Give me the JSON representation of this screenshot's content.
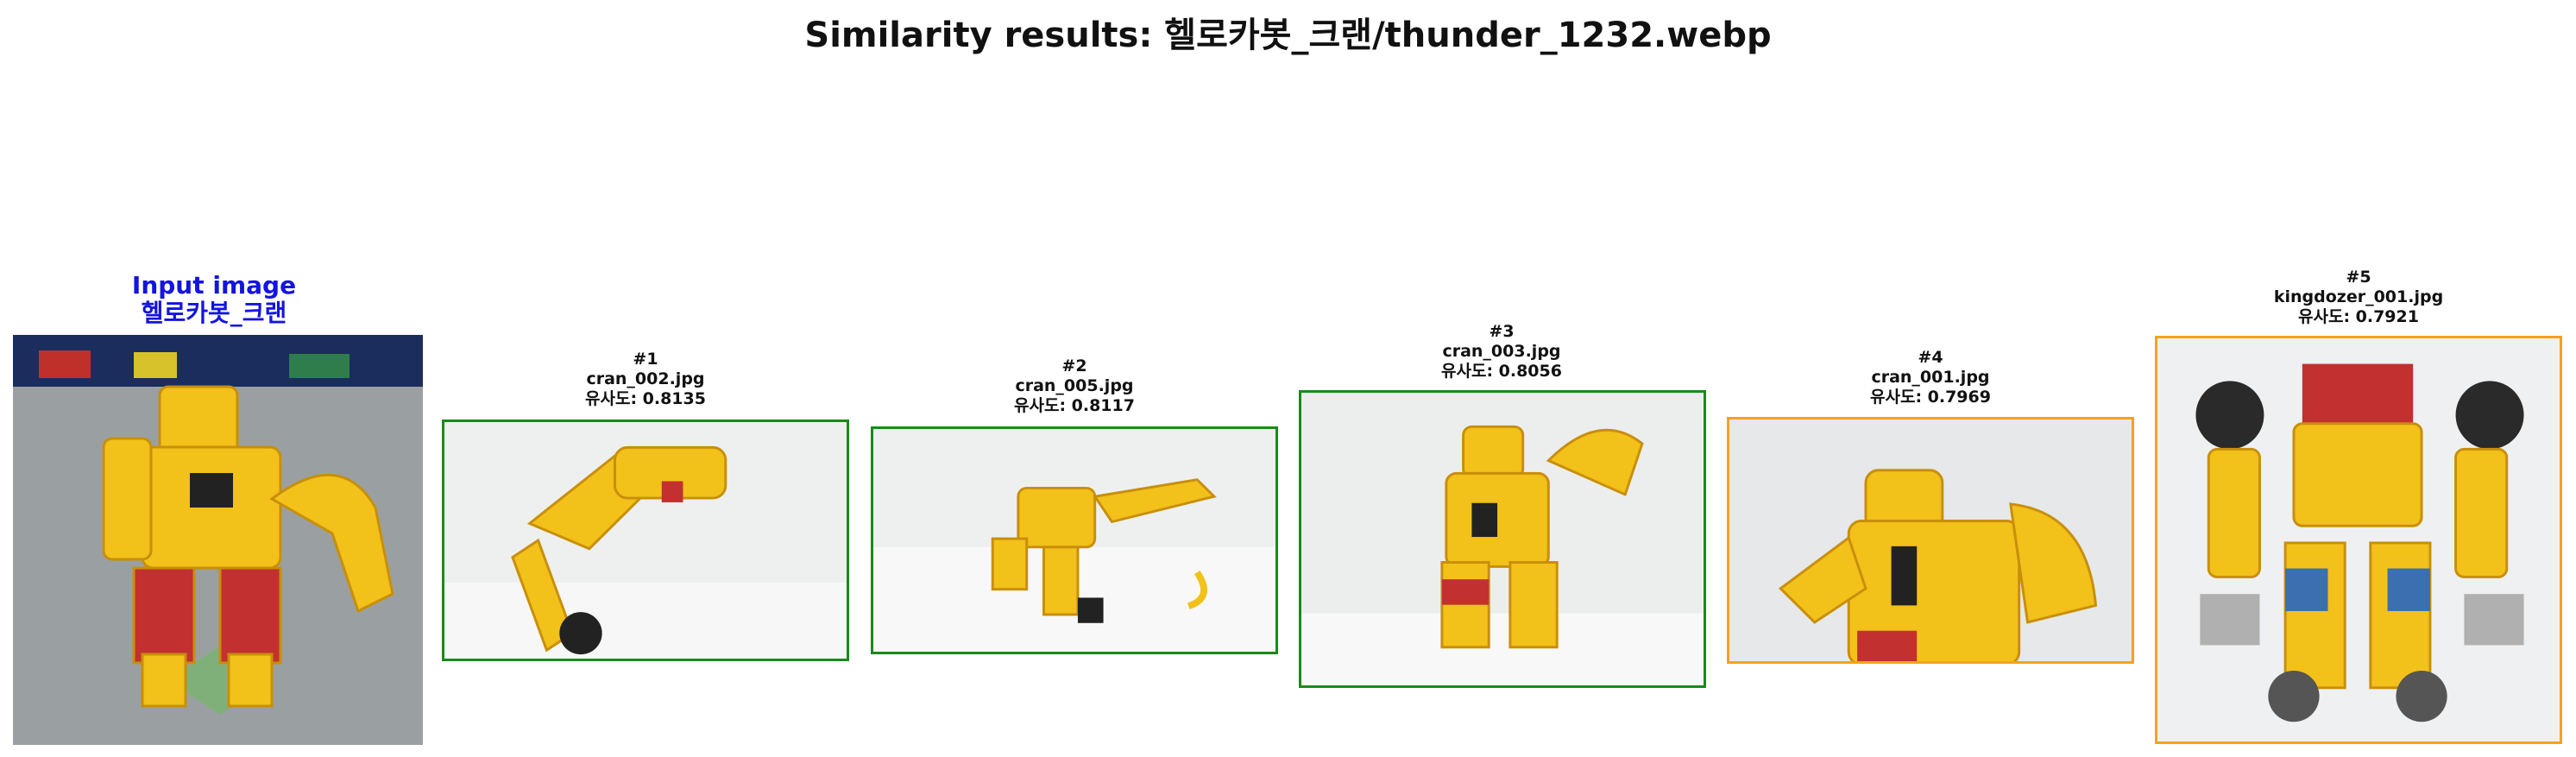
{
  "title": "Similarity results: 헬로카봇_크랜/thunder_1232.webp",
  "input": {
    "line1": "Input image",
    "line2": "헬로카봇_크랜",
    "label_color": "#1414e0"
  },
  "results": [
    {
      "rank": "#1",
      "file": "cran_002.jpg",
      "score": "유사도: 0.8135",
      "border": "#1a8a1a"
    },
    {
      "rank": "#2",
      "file": "cran_005.jpg",
      "score": "유사도: 0.8117",
      "border": "#1a8a1a"
    },
    {
      "rank": "#3",
      "file": "cran_003.jpg",
      "score": "유사도: 0.8056",
      "border": "#1a8a1a"
    },
    {
      "rank": "#4",
      "file": "cran_001.jpg",
      "score": "유사도: 0.7969",
      "border": "#f5a31a"
    },
    {
      "rank": "#5",
      "file": "kingdozer_001.jpg",
      "score": "유사도: 0.7921",
      "border": "#f5a31a"
    }
  ],
  "icons": [
    "robot-toy-photo"
  ]
}
